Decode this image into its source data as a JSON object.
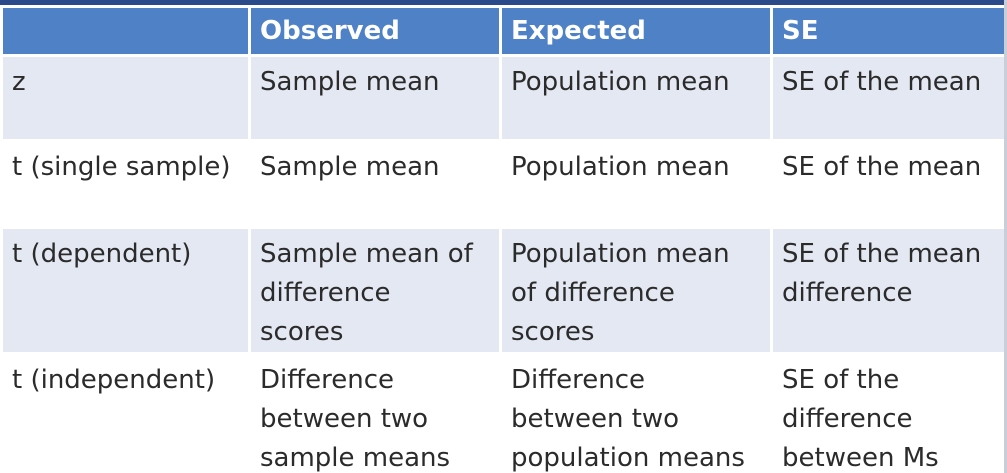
{
  "table": {
    "headers": [
      "",
      "Observed",
      "Expected",
      "SE"
    ],
    "rows": [
      [
        "z",
        "Sample mean",
        "Population mean",
        "SE of the mean"
      ],
      [
        "t (single sample)",
        "Sample mean",
        "Population mean",
        "SE of the mean"
      ],
      [
        "t (dependent)",
        "Sample mean of\ndifference\nscores",
        "Population mean\nof difference\nscores",
        "SE of the mean\ndifference"
      ],
      [
        "t (independent)",
        "Difference\nbetween two\nsample means",
        "Difference\nbetween two\npopulation means",
        "SE of the\ndifference\nbetween Ms"
      ]
    ]
  },
  "colors": {
    "header_bg": "#4f81c7",
    "header_text": "#ffffff",
    "row_shaded": "#e3e8f2",
    "row_plain": "#ffffff",
    "text": "#2b2b2b"
  }
}
